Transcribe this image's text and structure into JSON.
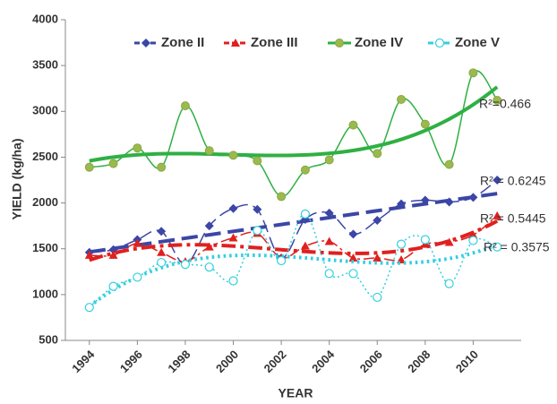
{
  "chart_data": {
    "type": "line",
    "x_label": "YEAR",
    "y_label": "YIELD (kg/ha)",
    "x": [
      1994,
      1995,
      1996,
      1997,
      1998,
      1999,
      2000,
      2001,
      2002,
      2003,
      2004,
      2005,
      2006,
      2007,
      2008,
      2009,
      2010,
      2011
    ],
    "xlim": [
      1993,
      2012
    ],
    "xticks": [
      1994,
      1996,
      1998,
      2000,
      2002,
      2004,
      2006,
      2008,
      2010
    ],
    "ylim": [
      500,
      4000
    ],
    "yticks": [
      500,
      1000,
      1500,
      2000,
      2500,
      3000,
      3500,
      4000
    ],
    "series": [
      {
        "name": "Zone II",
        "color": "#3b46a6",
        "marker": "diamond",
        "dash": "14 6",
        "trend_order": 1,
        "trend_label": "R² = 0.6245",
        "values": [
          1460,
          1490,
          1600,
          1690,
          1330,
          1750,
          1940,
          1930,
          1400,
          1820,
          1890,
          1660,
          1810,
          1990,
          2030,
          2010,
          2060,
          2250
        ]
      },
      {
        "name": "Zone III",
        "color": "#e0201e",
        "marker": "triangle",
        "dash": "12 4 3 4",
        "trend_order": 3,
        "trend_label": "R² = 0.5445",
        "values": [
          1430,
          1430,
          1560,
          1460,
          1360,
          1520,
          1620,
          1670,
          1400,
          1530,
          1580,
          1400,
          1400,
          1380,
          1550,
          1570,
          1650,
          1860
        ]
      },
      {
        "name": "Zone IV",
        "color": "#2fb043",
        "marker": "circle",
        "dash": "",
        "trend_order": 3,
        "trend_label": "R²=0.466",
        "values": [
          2390,
          2430,
          2600,
          2390,
          3060,
          2570,
          2520,
          2460,
          2070,
          2360,
          2470,
          2850,
          2540,
          3130,
          2860,
          2420,
          3420,
          3120
        ]
      },
      {
        "name": "Zone V",
        "color": "#33cfe0",
        "marker": "open-circle",
        "dash": "2 3",
        "trend_order": 3,
        "trend_label": "R² = 0.3575",
        "values": [
          860,
          1090,
          1190,
          1350,
          1330,
          1300,
          1150,
          1700,
          1370,
          1880,
          1230,
          1230,
          970,
          1550,
          1600,
          1120,
          1590,
          1520
        ]
      }
    ]
  }
}
